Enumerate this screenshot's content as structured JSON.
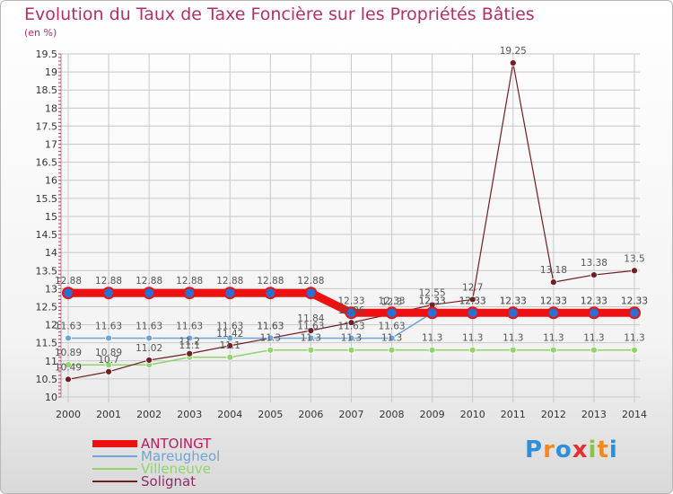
{
  "title": "Evolution du Taux de Taxe Foncière sur les Propriétés Bâties",
  "unit": "(en %)",
  "brand": "Proxiti",
  "colors": {
    "title": "#b0306a",
    "grid": "#c8c8c8",
    "axis_tick": "#d62a67",
    "label_text": "#555555"
  },
  "chart_data": {
    "type": "line",
    "title": "Evolution du Taux de Taxe Foncière sur les Propriétés Bâties",
    "ylabel": "(en %)",
    "xlabel": "",
    "ylim": [
      10,
      19.5
    ],
    "ytick_step": 0.5,
    "x": [
      "2000",
      "2001",
      "2002",
      "2003",
      "2004",
      "2005",
      "2006",
      "2007",
      "2008",
      "2009",
      "2010",
      "2011",
      "2012",
      "2013",
      "2014"
    ],
    "series": [
      {
        "name": "ANTOINGT",
        "color": "#ee1111",
        "values": [
          12.88,
          12.88,
          12.88,
          12.88,
          12.88,
          12.88,
          12.88,
          12.33,
          12.33,
          12.33,
          12.33,
          12.33,
          12.33,
          12.33,
          12.33
        ],
        "labels": [
          "12.88",
          "12.88",
          "12.88",
          "12.88",
          "12.88",
          "12.88",
          "12.88",
          "12.33",
          "12.33",
          "12.33",
          "12.33",
          "12.33",
          "12.33",
          "12.33",
          "12.33"
        ]
      },
      {
        "name": "Mareugheol",
        "color": "#6fa5d6",
        "values": [
          11.63,
          11.63,
          11.63,
          11.63,
          11.63,
          11.63,
          11.63,
          11.63,
          11.63,
          12.33,
          12.33,
          12.33,
          12.33,
          12.33,
          12.33
        ],
        "labels": [
          "11.63",
          "11.63",
          "11.63",
          "11.63",
          "11.63",
          "11.63",
          "11.63",
          "11.63",
          "11.63",
          "12.33",
          "12.33",
          "12.33",
          "12.33",
          "12.33",
          "12.33"
        ]
      },
      {
        "name": "Villeneuve",
        "color": "#90d46a",
        "values": [
          10.89,
          10.89,
          10.89,
          11.1,
          11.1,
          11.3,
          11.3,
          11.3,
          11.3,
          11.3,
          11.3,
          11.3,
          11.3,
          11.3,
          11.3
        ],
        "labels": [
          "10.89",
          "10.89",
          "",
          "11.1",
          "11.1",
          "11.3",
          "11.3",
          "11.3",
          "11.3",
          "11.3",
          "11.3",
          "11.3",
          "11.3",
          "11.3",
          "11.3"
        ]
      },
      {
        "name": "Solignat",
        "color": "#6e1e24",
        "values": [
          10.49,
          10.7,
          11.02,
          11.2,
          11.42,
          11.63,
          11.84,
          12.06,
          12.3,
          12.55,
          12.7,
          19.25,
          13.18,
          13.38,
          13.5
        ],
        "labels": [
          "10.49",
          "10.7",
          "11.02",
          "11.2",
          "11.42",
          "11.63",
          "11.84",
          "12.06",
          "12.3",
          "12.55",
          "12.7",
          "19.25",
          "13.18",
          "13.38",
          "13.5"
        ]
      }
    ],
    "legend": "bottom-left"
  }
}
